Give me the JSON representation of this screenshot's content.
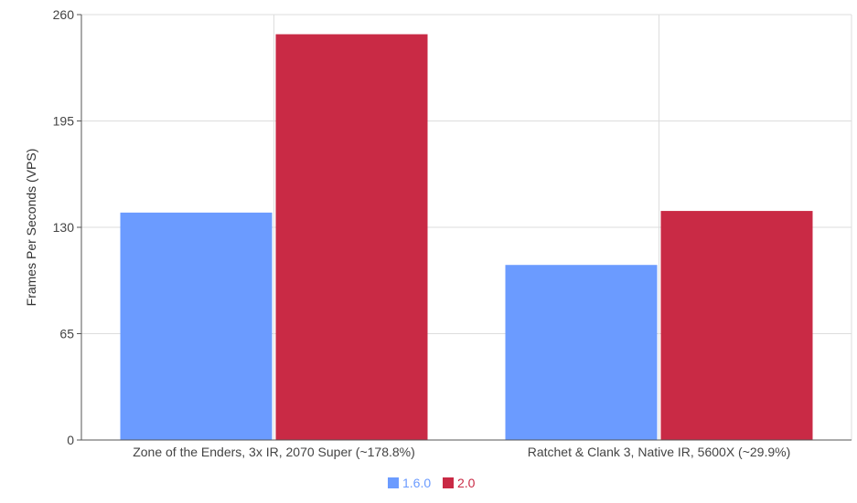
{
  "chart_data": {
    "type": "bar",
    "categories": [
      "Zone of the Enders, 3x IR, 2070 Super (~178.8%)",
      "Ratchet & Clank 3, Native IR, 5600X (~29.9%)"
    ],
    "series": [
      {
        "name": "1.6.0",
        "values": [
          139,
          107
        ],
        "color": "#6b9bff"
      },
      {
        "name": "2.0",
        "values": [
          248,
          140
        ],
        "color": "#c92a45"
      }
    ],
    "title": "",
    "xlabel": "",
    "ylabel": "Frames Per Seconds (VPS)",
    "ylim": [
      0,
      260
    ],
    "yticks": [
      0,
      65,
      130,
      195,
      260
    ],
    "grid": true,
    "legend_position": "bottom-center"
  }
}
